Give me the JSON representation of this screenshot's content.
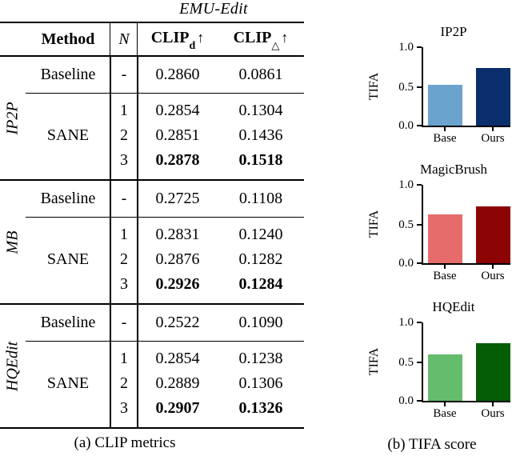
{
  "table": {
    "title": "EMU-Edit",
    "header": {
      "method": "Method",
      "n": "N",
      "clip1_base": "CLIP",
      "clip1_sub": "d",
      "clip2_base": "CLIP",
      "clip2_sub": "△",
      "arrow": "↑"
    },
    "groups": [
      {
        "label": "IP2P",
        "baseline": {
          "method": "Baseline",
          "n": "-",
          "clip_d": "0.2860",
          "clip_delta": "0.0861"
        },
        "sane_label": "SANE",
        "sane": [
          {
            "n": "1",
            "clip_d": "0.2854",
            "clip_delta": "0.1304"
          },
          {
            "n": "2",
            "clip_d": "0.2851",
            "clip_delta": "0.1436"
          },
          {
            "n": "3",
            "clip_d": "0.2878",
            "clip_delta": "0.1518"
          }
        ]
      },
      {
        "label": "MB",
        "baseline": {
          "method": "Baseline",
          "n": "-",
          "clip_d": "0.2725",
          "clip_delta": "0.1108"
        },
        "sane_label": "SANE",
        "sane": [
          {
            "n": "1",
            "clip_d": "0.2831",
            "clip_delta": "0.1240"
          },
          {
            "n": "2",
            "clip_d": "0.2876",
            "clip_delta": "0.1282"
          },
          {
            "n": "3",
            "clip_d": "0.2926",
            "clip_delta": "0.1284"
          }
        ]
      },
      {
        "label": "HQEdit",
        "baseline": {
          "method": "Baseline",
          "n": "-",
          "clip_d": "0.2522",
          "clip_delta": "0.1090"
        },
        "sane_label": "SANE",
        "sane": [
          {
            "n": "1",
            "clip_d": "0.2854",
            "clip_delta": "0.1238"
          },
          {
            "n": "2",
            "clip_d": "0.2889",
            "clip_delta": "0.1306"
          },
          {
            "n": "3",
            "clip_d": "0.2907",
            "clip_delta": "0.1326"
          }
        ]
      }
    ],
    "caption": "(a) CLIP metrics"
  },
  "charts_caption": "(b) TIFA score",
  "chart_data": [
    {
      "type": "bar",
      "title": "IP2P",
      "ylabel": "TIFA",
      "categories": [
        "Base",
        "Ours"
      ],
      "values": [
        0.51,
        0.72
      ],
      "colors": [
        "#6aa3ce",
        "#0a2e6c"
      ],
      "ylim": [
        0.0,
        1.0
      ],
      "yticks": [
        "1.0",
        "0.5",
        "0.0"
      ],
      "grid": false,
      "legend": "none"
    },
    {
      "type": "bar",
      "title": "MagicBrush",
      "ylabel": "TIFA",
      "categories": [
        "Base",
        "Ours"
      ],
      "values": [
        0.61,
        0.71
      ],
      "colors": [
        "#e66c6c",
        "#8c0404"
      ],
      "ylim": [
        0.0,
        1.0
      ],
      "yticks": [
        "1.0",
        "0.5",
        "0.0"
      ],
      "grid": false,
      "legend": "none"
    },
    {
      "type": "bar",
      "title": "HQEdit",
      "ylabel": "TIFA",
      "categories": [
        "Base",
        "Ours"
      ],
      "values": [
        0.58,
        0.72
      ],
      "colors": [
        "#64bc6c",
        "#055e05"
      ],
      "ylim": [
        0.0,
        1.0
      ],
      "yticks": [
        "1.0",
        "0.5",
        "0.0"
      ],
      "grid": false,
      "legend": "none"
    }
  ]
}
